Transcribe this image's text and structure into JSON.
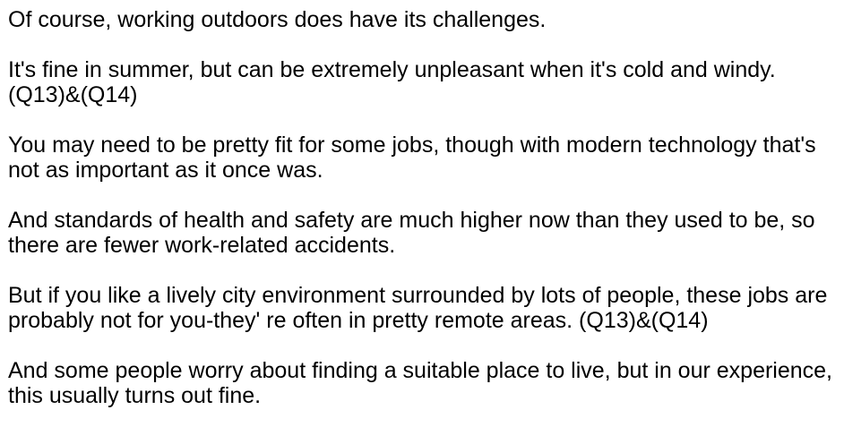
{
  "paragraphs": [
    "Of course, working outdoors does have its challenges.",
    "It's fine in summer, but can be extremely unpleasant when it's cold and windy. (Q13)&(Q14)",
    "You may need to be pretty fit for some jobs, though with modern technology that's not as important as it once was.",
    "And standards of health and safety are much higher now than they used to be, so there are fewer work-related accidents.",
    "But if you like a lively city environment surrounded by lots of people, these jobs are probably not for you-they' re often in pretty remote areas. (Q13)&(Q14)",
    "And some people worry about finding a suitable place to live, but in our experience, this usually turns out fine."
  ]
}
